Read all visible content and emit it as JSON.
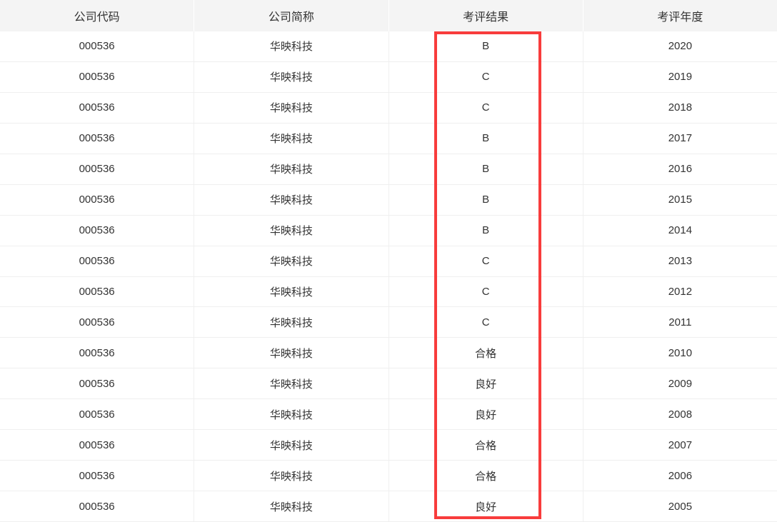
{
  "header": {
    "columns": [
      "公司代码",
      "公司简称",
      "考评结果",
      "考评年度"
    ]
  },
  "table": {
    "rows": [
      {
        "code": "000536",
        "name": "华映科技",
        "result": "B",
        "year": "2020"
      },
      {
        "code": "000536",
        "name": "华映科技",
        "result": "C",
        "year": "2019"
      },
      {
        "code": "000536",
        "name": "华映科技",
        "result": "C",
        "year": "2018"
      },
      {
        "code": "000536",
        "name": "华映科技",
        "result": "B",
        "year": "2017"
      },
      {
        "code": "000536",
        "name": "华映科技",
        "result": "B",
        "year": "2016"
      },
      {
        "code": "000536",
        "name": "华映科技",
        "result": "B",
        "year": "2015"
      },
      {
        "code": "000536",
        "name": "华映科技",
        "result": "B",
        "year": "2014"
      },
      {
        "code": "000536",
        "name": "华映科技",
        "result": "C",
        "year": "2013"
      },
      {
        "code": "000536",
        "name": "华映科技",
        "result": "C",
        "year": "2012"
      },
      {
        "code": "000536",
        "name": "华映科技",
        "result": "C",
        "year": "2011"
      },
      {
        "code": "000536",
        "name": "华映科技",
        "result": "合格",
        "year": "2010"
      },
      {
        "code": "000536",
        "name": "华映科技",
        "result": "良好",
        "year": "2009"
      },
      {
        "code": "000536",
        "name": "华映科技",
        "result": "良好",
        "year": "2008"
      },
      {
        "code": "000536",
        "name": "华映科技",
        "result": "合格",
        "year": "2007"
      },
      {
        "code": "000536",
        "name": "华映科技",
        "result": "合格",
        "year": "2006"
      },
      {
        "code": "000536",
        "name": "华映科技",
        "result": "良好",
        "year": "2005"
      }
    ]
  },
  "annotation": {
    "highlighted_column": "考评结果",
    "highlight_color": "#f83c3c"
  },
  "colors": {
    "header_bg": "#f4f4f4",
    "row_border": "#f0f0f0",
    "text": "#333333"
  }
}
